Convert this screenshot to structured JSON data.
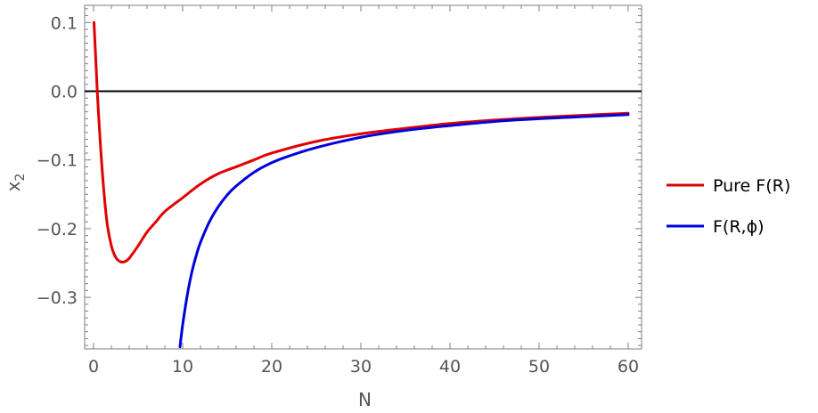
{
  "chart_data": {
    "type": "line",
    "xlabel": "N",
    "ylabel": {
      "main": "x",
      "sub": "2"
    },
    "xlim": [
      -1,
      61.5
    ],
    "ylim": [
      -0.375,
      0.125
    ],
    "x_ticks": [
      0,
      10,
      20,
      30,
      40,
      50,
      60
    ],
    "x_tick_labels": [
      "0",
      "10",
      "20",
      "30",
      "40",
      "50",
      "60"
    ],
    "y_ticks": [
      0.1,
      0.0,
      -0.1,
      -0.2,
      -0.3
    ],
    "y_tick_labels": [
      "0.1",
      "0.0",
      "−0.1",
      "−0.2",
      "−0.3"
    ],
    "reference_line": {
      "y": 0,
      "color": "#000000"
    },
    "grid": false,
    "legend_position": "right",
    "series": [
      {
        "name": "Pure F(R)",
        "color": "#e00000",
        "x": [
          0.05,
          0.2,
          0.5,
          1.0,
          1.5,
          2.0,
          2.5,
          3.0,
          3.5,
          4.0,
          5.0,
          6.0,
          7.0,
          8.0,
          10,
          12,
          14,
          16,
          18,
          20,
          25,
          30,
          35,
          40,
          45,
          50,
          55,
          60
        ],
        "y": [
          0.1,
          0.06,
          -0.02,
          -0.12,
          -0.19,
          -0.225,
          -0.242,
          -0.248,
          -0.248,
          -0.243,
          -0.225,
          -0.205,
          -0.19,
          -0.175,
          -0.155,
          -0.135,
          -0.12,
          -0.11,
          -0.1,
          -0.09,
          -0.073,
          -0.062,
          -0.054,
          -0.047,
          -0.042,
          -0.038,
          -0.035,
          -0.032
        ]
      },
      {
        "name": "F(R,ϕ)",
        "color": "#0000dd",
        "x": [
          9.7,
          10,
          10.5,
          11,
          11.5,
          12,
          13,
          14,
          15,
          16,
          18,
          20,
          22,
          25,
          30,
          35,
          40,
          45,
          50,
          55,
          60
        ],
        "y": [
          -0.372,
          -0.34,
          -0.298,
          -0.265,
          -0.24,
          -0.22,
          -0.19,
          -0.168,
          -0.151,
          -0.138,
          -0.118,
          -0.104,
          -0.094,
          -0.082,
          -0.067,
          -0.057,
          -0.05,
          -0.044,
          -0.04,
          -0.037,
          -0.034
        ]
      }
    ]
  }
}
